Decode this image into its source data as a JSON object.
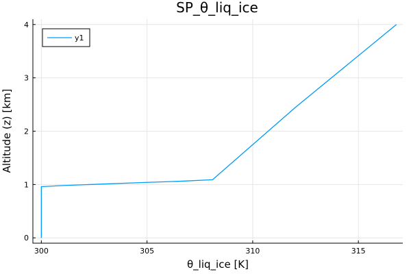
{
  "chart_data": {
    "type": "line",
    "title": "SP_θ_liq_ice",
    "xlabel": "θ_liq_ice [K]",
    "ylabel": "Altitude (z) [km]",
    "xlim": [
      299.6,
      317.1
    ],
    "ylim": [
      -0.1,
      4.1
    ],
    "xticks": [
      300,
      305,
      310,
      315
    ],
    "yticks": [
      0,
      1,
      2,
      3,
      4
    ],
    "grid": true,
    "legend_position": "top-left",
    "series": [
      {
        "name": "y1",
        "color": "#009AF9",
        "x": [
          300.0,
          300.0,
          301.0,
          303.0,
          305.0,
          306.5,
          308.1,
          312.0,
          316.8
        ],
        "y": [
          0.0,
          0.96,
          0.98,
          1.01,
          1.04,
          1.06,
          1.09,
          2.44,
          4.0
        ]
      }
    ]
  }
}
